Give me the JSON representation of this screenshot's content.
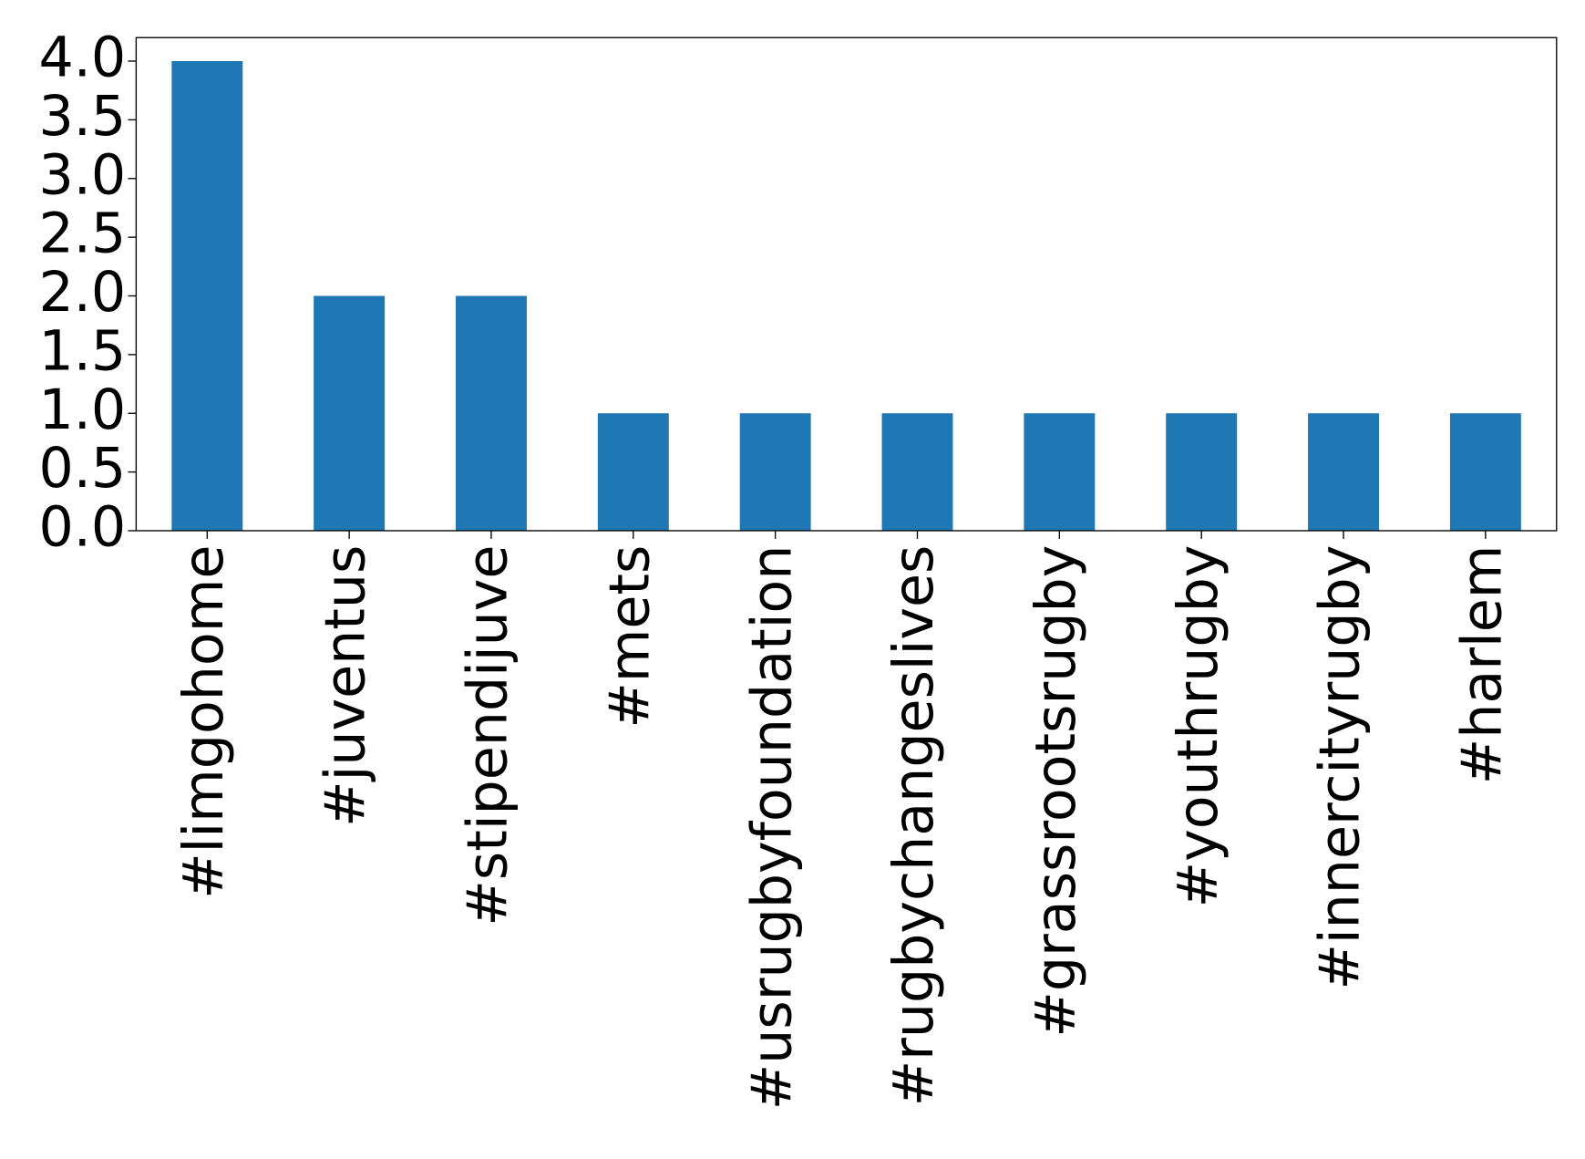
{
  "chart_data": {
    "type": "bar",
    "categories": [
      "#limgohome",
      "#juventus",
      "#stipendijuve",
      "#mets",
      "#usrugbyfoundation",
      "#rugbychangeslives",
      "#grassrootsrugby",
      "#youthrugby",
      "#innercityrugby",
      "#harlem"
    ],
    "values": [
      4,
      2,
      2,
      1,
      1,
      1,
      1,
      1,
      1,
      1
    ],
    "color": "#1f77b4",
    "ylim": [
      0,
      4.2
    ],
    "yticks": [
      {
        "value": 0,
        "label": "0.0"
      },
      0.5,
      {
        "value": 1,
        "label": "1.0"
      },
      1.5,
      {
        "value": 2,
        "label": "2.0"
      },
      2.5,
      {
        "value": 3,
        "label": "3.0"
      },
      3.5,
      {
        "value": 4,
        "label": "4.0"
      }
    ],
    "grid": false
  }
}
